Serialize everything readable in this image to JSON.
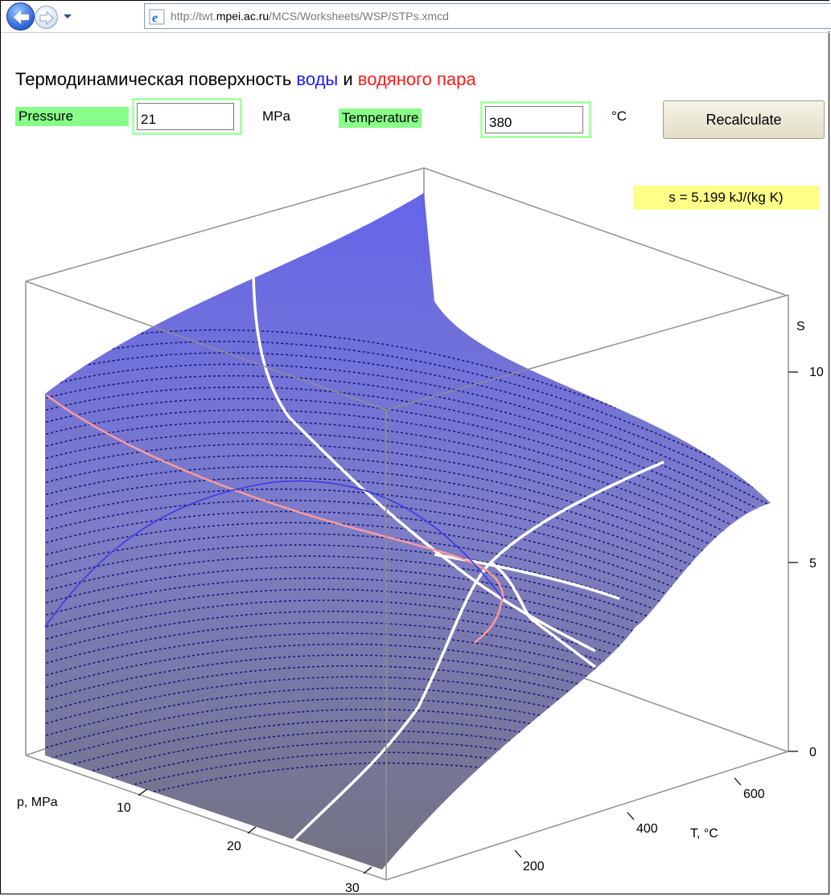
{
  "browser": {
    "url_prefix": "http://twt.",
    "url_domain": "mpei.ac.ru",
    "url_path": "/MCS/Worksheets/WSP/STPs.xmcd",
    "back_icon": "back-arrow-icon",
    "forward_icon": "forward-arrow-icon",
    "page_icon": "ie-page-icon"
  },
  "page": {
    "title_part1": "Термодинамическая поверхность ",
    "title_water": "воды",
    "title_and": " и ",
    "title_steam": "водяного пара",
    "water_color": "#1a1aff",
    "steam_color": "#ff1a1a"
  },
  "form": {
    "pressure_label": "Pressure",
    "pressure_value": "21",
    "pressure_unit": "MPa",
    "temperature_label": "Temperature",
    "temperature_value": "380",
    "temperature_unit": "°C",
    "recalculate_label": "Recalculate"
  },
  "result": {
    "entropy_text": "s = 5.199 kJ/(kg K)"
  },
  "chart_data": {
    "type": "surface",
    "z_axis": {
      "label": "S",
      "ticks": [
        "0",
        "5",
        "10"
      ]
    },
    "p_axis": {
      "label": "p, MPa",
      "ticks": [
        "10",
        "20",
        "30"
      ]
    },
    "t_axis": {
      "label": "T, °C",
      "ticks": [
        "200",
        "400",
        "600"
      ]
    },
    "surface_color": "#6f6fd0"
  }
}
